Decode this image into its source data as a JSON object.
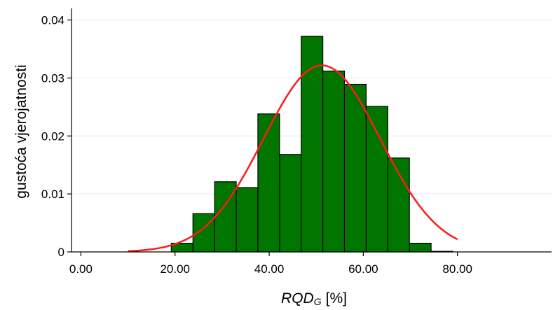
{
  "chart_data": {
    "type": "bar",
    "subtype": "histogram",
    "title": "",
    "xlabel": {
      "main": "RQD",
      "subscript": "G",
      "unit": "[%]"
    },
    "ylabel": "gustoća vjerojatnosti",
    "xlim": [
      -2,
      100
    ],
    "ylim": [
      0,
      0.042
    ],
    "x_ticks": [
      0,
      20,
      40,
      60,
      80
    ],
    "x_tick_labels": [
      "0.00",
      "20.00",
      "40.00",
      "60.00",
      "80.00"
    ],
    "y_ticks": [
      0,
      0.01,
      0.02,
      0.03,
      0.04
    ],
    "y_tick_labels": [
      "0",
      "0.01",
      "0.02",
      "0.03",
      "0.04"
    ],
    "grid": "horizontal",
    "bin_edges": [
      19.2,
      23.8,
      28.4,
      33.0,
      37.6,
      42.2,
      46.8,
      51.4,
      56.0,
      60.6,
      65.2,
      69.8,
      74.4,
      79.0
    ],
    "values": [
      0.0015,
      0.0066,
      0.0121,
      0.0111,
      0.0238,
      0.0168,
      0.0372,
      0.0312,
      0.0289,
      0.0251,
      0.0162,
      0.0015,
      0.0001
    ],
    "curve": {
      "type": "normal",
      "mean": 51.2,
      "sd": 12.4,
      "x_range": [
        10,
        80
      ]
    },
    "colors": {
      "bar_fill": "#007500",
      "bar_stroke": "#000000",
      "curve": "#ff1a1a",
      "grid": "#e3eef0"
    }
  }
}
